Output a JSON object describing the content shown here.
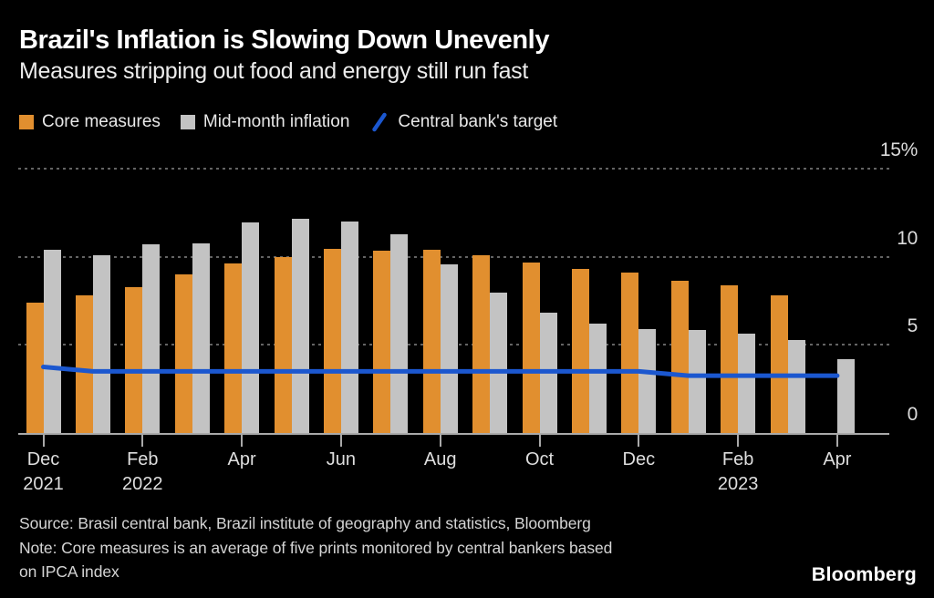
{
  "header": {
    "title": "Brazil's Inflation is Slowing Down Unevenly",
    "subtitle": "Measures stripping out food and energy still run fast"
  },
  "legend": [
    {
      "label": "Core measures",
      "marker": "square",
      "color": "#E18F2F"
    },
    {
      "label": "Mid-month inflation",
      "marker": "square",
      "color": "#C3C3C3"
    },
    {
      "label": "Central bank's target",
      "marker": "slash",
      "color": "#1B57CF"
    }
  ],
  "footer": {
    "source": "Source: Brasil central bank, Brazil institute of geography and statistics, Bloomberg",
    "note_line1": "Note: Core measures is an average of five prints monitored by central bankers based",
    "note_line2": "on IPCA index",
    "brand": "Bloomberg"
  },
  "colors": {
    "background": "#000000",
    "grid": "#646464",
    "axis": "#A9A9A9",
    "axis_text": "#DCDCDC"
  },
  "chart_data": {
    "type": "bar",
    "title": "Brazil's Inflation is Slowing Down Unevenly",
    "subtitle": "Measures stripping out food and energy still run fast",
    "categories": [
      "Dec 2021",
      "Jan 2022",
      "Feb 2022",
      "Mar 2022",
      "Apr 2022",
      "May 2022",
      "Jun 2022",
      "Jul 2022",
      "Aug 2022",
      "Sep 2022",
      "Oct 2022",
      "Nov 2022",
      "Dec 2022",
      "Jan 2023",
      "Feb 2023",
      "Mar 2023",
      "Apr 2023"
    ],
    "series": [
      {
        "name": "Core measures",
        "type": "bar",
        "color": "#E18F2F",
        "values": [
          7.4,
          7.8,
          8.3,
          9.0,
          9.6,
          10.0,
          10.45,
          10.35,
          10.4,
          10.1,
          9.65,
          9.3,
          9.1,
          8.65,
          8.4,
          7.8,
          null
        ]
      },
      {
        "name": "Mid-month inflation",
        "type": "bar",
        "color": "#C3C3C3",
        "values": [
          10.4,
          10.1,
          10.7,
          10.75,
          11.95,
          12.15,
          12.0,
          11.3,
          9.55,
          7.95,
          6.85,
          6.2,
          5.9,
          5.85,
          5.65,
          5.3,
          4.2
        ]
      },
      {
        "name": "Central bank's target",
        "type": "line",
        "color": "#1B57CF",
        "values": [
          3.75,
          3.5,
          3.5,
          3.5,
          3.5,
          3.5,
          3.5,
          3.5,
          3.5,
          3.5,
          3.5,
          3.5,
          3.5,
          3.25,
          3.25,
          3.25,
          3.25
        ]
      }
    ],
    "ylabel": "",
    "xlabel": "",
    "ylim": [
      0,
      15
    ],
    "yticks": [
      0,
      5,
      10,
      15
    ],
    "ytick_labels": [
      "0",
      "5",
      "10",
      "15%"
    ],
    "ytick_side": "right",
    "xtick_labels": [
      [
        "Dec",
        "2021"
      ],
      [
        "Feb",
        "2022"
      ],
      [
        "Apr"
      ],
      [
        "Jun"
      ],
      [
        "Aug"
      ],
      [
        "Oct"
      ],
      [
        "Dec"
      ],
      [
        "Feb",
        "2023"
      ],
      [
        "Apr"
      ]
    ],
    "xtick_every_n_categories": 2,
    "grid": "horizontal-dotted",
    "legend_position": "top-left"
  }
}
